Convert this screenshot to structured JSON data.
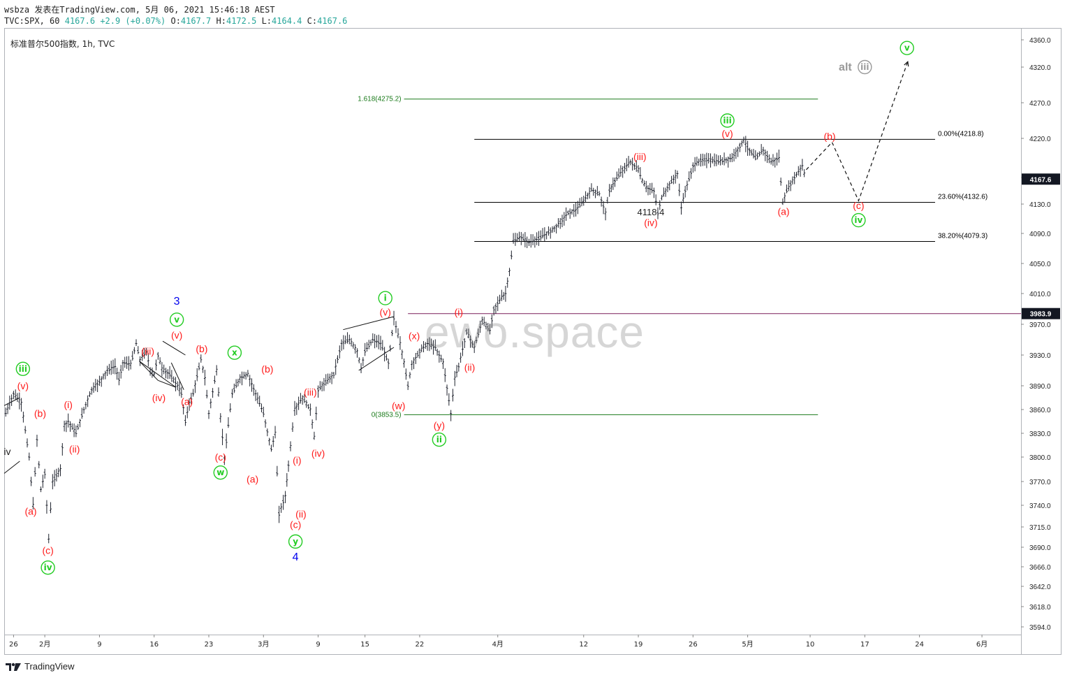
{
  "header": {
    "line1": "wsbza 发表在TradingView.com, 5月 06, 2021 15:46:18 AEST",
    "symbol": "TVC:SPX, 60",
    "last": "4167.6",
    "change": "+2.9 (+0.07%)",
    "o_label": "O:",
    "o": "4167.7",
    "h_label": "H:",
    "h": "4172.5",
    "l_label": "L:",
    "l": "4164.4",
    "c_label": "C:",
    "c": "4167.6"
  },
  "chart_title": "标准普尔500指数, 1h, TVC",
  "watermark": "ewo.space",
  "footer": {
    "brand": "TradingView"
  },
  "colors": {
    "red": "#ff1a1a",
    "green": "#22cc22",
    "blue": "#0000ee",
    "black": "#000000",
    "dark_green": "#1a7a1a",
    "purple": "#7b1f5a"
  },
  "chart_data": {
    "type": "line",
    "title": "标准普尔500指数, 1h, TVC",
    "ylim": [
      3580,
      4370
    ],
    "y_ticks": [
      "4360.0",
      "4320.0",
      "4270.0",
      "4220.0",
      "4170.0",
      "4130.0",
      "4090.0",
      "4050.0",
      "4010.0",
      "3970.0",
      "3930.0",
      "3890.0",
      "3860.0",
      "3830.0",
      "3800.0",
      "3770.0",
      "3740.0",
      "3715.0",
      "3690.0",
      "3666.0",
      "3642.0",
      "3618.0",
      "3594.0"
    ],
    "x_ticks": [
      {
        "label": "26",
        "t": 0
      },
      {
        "label": "2月",
        "t": 4
      },
      {
        "label": "9",
        "t": 11
      },
      {
        "label": "16",
        "t": 18
      },
      {
        "label": "23",
        "t": 25
      },
      {
        "label": "3月",
        "t": 32
      },
      {
        "label": "9",
        "t": 39
      },
      {
        "label": "15",
        "t": 45
      },
      {
        "label": "22",
        "t": 52
      },
      {
        "label": "4月",
        "t": 62
      },
      {
        "label": "12",
        "t": 73
      },
      {
        "label": "19",
        "t": 80
      },
      {
        "label": "26",
        "t": 87
      },
      {
        "label": "5月",
        "t": 94
      },
      {
        "label": "10",
        "t": 102
      },
      {
        "label": "17",
        "t": 109
      },
      {
        "label": "24",
        "t": 116
      },
      {
        "label": "6月",
        "t": 124
      }
    ],
    "t_range": [
      -1.2,
      129
    ],
    "price_series": [
      [
        -1,
        3855
      ],
      [
        0,
        3880
      ],
      [
        1,
        3868
      ],
      [
        2,
        3800
      ],
      [
        2.5,
        3740
      ],
      [
        3,
        3822
      ],
      [
        3.5,
        3760
      ],
      [
        4,
        3780
      ],
      [
        4.5,
        3700
      ],
      [
        5,
        3770
      ],
      [
        6,
        3785
      ],
      [
        6.5,
        3840
      ],
      [
        7,
        3845
      ],
      [
        8,
        3830
      ],
      [
        9,
        3860
      ],
      [
        10,
        3885
      ],
      [
        11,
        3895
      ],
      [
        12,
        3910
      ],
      [
        13,
        3915
      ],
      [
        13.5,
        3898
      ],
      [
        14,
        3920
      ],
      [
        15,
        3918
      ],
      [
        15.7,
        3945
      ],
      [
        16.2,
        3924
      ],
      [
        17,
        3935
      ],
      [
        17.5,
        3910
      ],
      [
        18,
        3905
      ],
      [
        18.5,
        3930
      ],
      [
        19,
        3912
      ],
      [
        20,
        3905
      ],
      [
        21,
        3890
      ],
      [
        21.5,
        3880
      ],
      [
        22,
        3845
      ],
      [
        22.5,
        3868
      ],
      [
        23,
        3880
      ],
      [
        24,
        3925
      ],
      [
        24.5,
        3900
      ],
      [
        25,
        3855
      ],
      [
        26,
        3910
      ],
      [
        26.5,
        3850
      ],
      [
        27,
        3800
      ],
      [
        28,
        3880
      ],
      [
        29,
        3900
      ],
      [
        30,
        3905
      ],
      [
        31,
        3880
      ],
      [
        32,
        3855
      ],
      [
        33,
        3810
      ],
      [
        33.5,
        3830
      ],
      [
        34,
        3730
      ],
      [
        34.8,
        3752
      ],
      [
        35.2,
        3790
      ],
      [
        36,
        3860
      ],
      [
        37,
        3875
      ],
      [
        38,
        3860
      ],
      [
        38.5,
        3825
      ],
      [
        39,
        3885
      ],
      [
        40,
        3895
      ],
      [
        41,
        3905
      ],
      [
        42,
        3945
      ],
      [
        43,
        3950
      ],
      [
        44,
        3935
      ],
      [
        44.5,
        3912
      ],
      [
        45,
        3935
      ],
      [
        46,
        3950
      ],
      [
        47,
        3945
      ],
      [
        48,
        3920
      ],
      [
        48.7,
        3978
      ],
      [
        49.5,
        3945
      ],
      [
        50,
        3920
      ],
      [
        50.5,
        3890
      ],
      [
        51,
        3918
      ],
      [
        52,
        3935
      ],
      [
        53,
        3945
      ],
      [
        54,
        3940
      ],
      [
        55,
        3920
      ],
      [
        56,
        3855
      ],
      [
        56.5,
        3900
      ],
      [
        57,
        3915
      ],
      [
        58,
        3960
      ],
      [
        59,
        3940
      ],
      [
        60,
        3975
      ],
      [
        61,
        3962
      ],
      [
        61.5,
        3990
      ],
      [
        62.5,
        4005
      ],
      [
        63,
        4010
      ],
      [
        63.5,
        4040
      ],
      [
        64,
        4080
      ],
      [
        65,
        4085
      ],
      [
        66,
        4078
      ],
      [
        67,
        4082
      ],
      [
        68,
        4088
      ],
      [
        69,
        4095
      ],
      [
        70,
        4105
      ],
      [
        71,
        4118
      ],
      [
        72,
        4122
      ],
      [
        73,
        4135
      ],
      [
        74,
        4152
      ],
      [
        75,
        4145
      ],
      [
        75.8,
        4118
      ],
      [
        76.3,
        4150
      ],
      [
        77,
        4165
      ],
      [
        78,
        4180
      ],
      [
        79,
        4190
      ],
      [
        80,
        4180
      ],
      [
        80.5,
        4165
      ],
      [
        81,
        4155
      ],
      [
        82,
        4150
      ],
      [
        82.5,
        4118
      ],
      [
        83,
        4140
      ],
      [
        84,
        4160
      ],
      [
        85,
        4175
      ],
      [
        85.5,
        4125
      ],
      [
        86,
        4150
      ],
      [
        87,
        4185
      ],
      [
        88,
        4192
      ],
      [
        89,
        4193
      ],
      [
        90,
        4190
      ],
      [
        91,
        4192
      ],
      [
        92,
        4195
      ],
      [
        93,
        4210
      ],
      [
        93.5,
        4218
      ],
      [
        94,
        4208
      ],
      [
        95,
        4195
      ],
      [
        96,
        4205
      ],
      [
        97,
        4190
      ],
      [
        98,
        4195
      ],
      [
        98.5,
        4132
      ],
      [
        99,
        4150
      ],
      [
        100,
        4170
      ],
      [
        101,
        4185
      ],
      [
        101.5,
        4165
      ]
    ],
    "horizontal_levels": [
      {
        "label": "1.618(4275.2)",
        "value": 4275.2,
        "t0": 50,
        "t1": 103,
        "color": "#1a7a1a",
        "label_side": "left"
      },
      {
        "label": "0.00%(4218.8)",
        "value": 4218.8,
        "t0": 59,
        "t1": 118,
        "color": "#000000",
        "label_side": "right"
      },
      {
        "label": "23.60%(4132.6)",
        "value": 4132.6,
        "t0": 59,
        "t1": 118,
        "color": "#000000",
        "label_side": "right"
      },
      {
        "label": "38.20%(4079.3)",
        "value": 4079.3,
        "t0": 59,
        "t1": 118,
        "color": "#000000",
        "label_side": "right"
      },
      {
        "label": "0(3853.5)",
        "value": 3853.5,
        "t0": 50,
        "t1": 103,
        "color": "#1a7a1a",
        "label_side": "left"
      },
      {
        "label": "",
        "value": 3983.9,
        "t0": 50.5,
        "t1": 130,
        "color": "#7b1f5a",
        "label_side": "none"
      }
    ],
    "price_tags": [
      {
        "value": 4167.6,
        "text": "4167.6"
      },
      {
        "value": 3983.9,
        "text": "3983.9"
      }
    ],
    "projection": [
      [
        101.5,
        4180
      ],
      [
        104.8,
        4215
      ],
      [
        108.2,
        4135
      ],
      [
        114.5,
        4328
      ]
    ],
    "channels": [
      [
        [
          -1.2,
          3865
        ],
        [
          0.8,
          3875
        ]
      ],
      [
        [
          -1.2,
          3780
        ],
        [
          0.8,
          3795
        ]
      ],
      [
        [
          16.1,
          3922
        ],
        [
          18.5,
          3897
        ]
      ],
      [
        [
          18.5,
          3897
        ],
        [
          20.8,
          3888
        ]
      ],
      [
        [
          16.1,
          3922
        ],
        [
          20.8,
          3888
        ]
      ],
      [
        [
          19.1,
          3948
        ],
        [
          22,
          3930
        ]
      ],
      [
        [
          20.2,
          3920
        ],
        [
          21.8,
          3885
        ]
      ],
      [
        [
          42.2,
          3963
        ],
        [
          48.7,
          3980
        ]
      ],
      [
        [
          44.2,
          3910
        ],
        [
          48.7,
          3940
        ]
      ]
    ],
    "text_annotations": [
      {
        "text": "4118.4",
        "t": 81.6,
        "v": 4115,
        "color": "#222222",
        "size": 13
      }
    ],
    "wave_labels": [
      {
        "text": "(v)",
        "t": 1.2,
        "v": 3890,
        "color": "#ff1a1a",
        "style": "plain"
      },
      {
        "text": "iii",
        "t": 1.2,
        "v": 3912,
        "color": "#22cc22",
        "style": "circle"
      },
      {
        "text": "iv",
        "t": -0.8,
        "v": 3807,
        "color": "#222222",
        "style": "plain"
      },
      {
        "text": "(a)",
        "t": 2.2,
        "v": 3733,
        "color": "#ff1a1a",
        "style": "plain"
      },
      {
        "text": "(b)",
        "t": 3.4,
        "v": 3855,
        "color": "#ff1a1a",
        "style": "plain"
      },
      {
        "text": "(c)",
        "t": 4.4,
        "v": 3686,
        "color": "#ff1a1a",
        "style": "plain"
      },
      {
        "text": "iv",
        "t": 4.4,
        "v": 3665,
        "color": "#22cc22",
        "style": "circle"
      },
      {
        "text": "(i)",
        "t": 7,
        "v": 3866,
        "color": "#ff1a1a",
        "style": "plain"
      },
      {
        "text": "(ii)",
        "t": 7.8,
        "v": 3810,
        "color": "#ff1a1a",
        "style": "plain"
      },
      {
        "text": "(iii)",
        "t": 17.2,
        "v": 3935,
        "color": "#ff1a1a",
        "style": "plain"
      },
      {
        "text": "(iv)",
        "t": 18.6,
        "v": 3875,
        "color": "#ff1a1a",
        "style": "plain"
      },
      {
        "text": "(v)",
        "t": 20.9,
        "v": 3956,
        "color": "#ff1a1a",
        "style": "plain"
      },
      {
        "text": "v",
        "t": 20.9,
        "v": 3976,
        "color": "#22cc22",
        "style": "circle"
      },
      {
        "text": "3",
        "t": 20.9,
        "v": 4000,
        "color": "#0000ee",
        "style": "plain"
      },
      {
        "text": "(b)",
        "t": 24.1,
        "v": 3938,
        "color": "#ff1a1a",
        "style": "plain"
      },
      {
        "text": "(a)",
        "t": 22.2,
        "v": 3870,
        "color": "#ff1a1a",
        "style": "plain"
      },
      {
        "text": "x",
        "t": 28.3,
        "v": 3933,
        "color": "#22cc22",
        "style": "circle"
      },
      {
        "text": "(c)",
        "t": 26.5,
        "v": 3800,
        "color": "#ff1a1a",
        "style": "plain"
      },
      {
        "text": "w",
        "t": 26.5,
        "v": 3781,
        "color": "#22cc22",
        "style": "circle"
      },
      {
        "text": "(b)",
        "t": 32.5,
        "v": 3912,
        "color": "#ff1a1a",
        "style": "plain"
      },
      {
        "text": "(a)",
        "t": 30.6,
        "v": 3773,
        "color": "#ff1a1a",
        "style": "plain"
      },
      {
        "text": "(iii)",
        "t": 38,
        "v": 3882,
        "color": "#ff1a1a",
        "style": "plain"
      },
      {
        "text": "(iv)",
        "t": 39,
        "v": 3805,
        "color": "#ff1a1a",
        "style": "plain"
      },
      {
        "text": "(i)",
        "t": 36.3,
        "v": 3796,
        "color": "#ff1a1a",
        "style": "plain"
      },
      {
        "text": "(ii)",
        "t": 36.8,
        "v": 3730,
        "color": "#ff1a1a",
        "style": "plain"
      },
      {
        "text": "(c)",
        "t": 36.1,
        "v": 3718,
        "color": "#ff1a1a",
        "style": "plain"
      },
      {
        "text": "y",
        "t": 36.1,
        "v": 3697,
        "color": "#22cc22",
        "style": "circle"
      },
      {
        "text": "4",
        "t": 36.1,
        "v": 3678,
        "color": "#0000ee",
        "style": "plain"
      },
      {
        "text": "i",
        "t": 47.6,
        "v": 4004,
        "color": "#22cc22",
        "style": "circle"
      },
      {
        "text": "(v)",
        "t": 47.6,
        "v": 3986,
        "color": "#ff1a1a",
        "style": "plain"
      },
      {
        "text": "(x)",
        "t": 51.3,
        "v": 3955,
        "color": "#ff1a1a",
        "style": "plain"
      },
      {
        "text": "(w)",
        "t": 49.3,
        "v": 3865,
        "color": "#ff1a1a",
        "style": "plain"
      },
      {
        "text": "(y)",
        "t": 54.5,
        "v": 3840,
        "color": "#ff1a1a",
        "style": "plain"
      },
      {
        "text": "ii",
        "t": 54.5,
        "v": 3822,
        "color": "#22cc22",
        "style": "circle"
      },
      {
        "text": "(i)",
        "t": 57,
        "v": 3986,
        "color": "#ff1a1a",
        "style": "plain"
      },
      {
        "text": "(ii)",
        "t": 58.4,
        "v": 3914,
        "color": "#ff1a1a",
        "style": "plain"
      },
      {
        "text": "(iii)",
        "t": 80.2,
        "v": 4197,
        "color": "#ff1a1a",
        "style": "plain"
      },
      {
        "text": "(iv)",
        "t": 81.6,
        "v": 4105,
        "color": "#ff1a1a",
        "style": "plain"
      },
      {
        "text": "iii",
        "t": 91.4,
        "v": 4245,
        "color": "#22cc22",
        "style": "circle"
      },
      {
        "text": "(v)",
        "t": 91.4,
        "v": 4227,
        "color": "#ff1a1a",
        "style": "plain"
      },
      {
        "text": "(a)",
        "t": 98.6,
        "v": 4120,
        "color": "#ff1a1a",
        "style": "plain"
      },
      {
        "text": "(b)",
        "t": 104.5,
        "v": 4223,
        "color": "#ff1a1a",
        "style": "plain"
      },
      {
        "text": "(c)",
        "t": 108.2,
        "v": 4128,
        "color": "#ff1a1a",
        "style": "plain"
      },
      {
        "text": "iv",
        "t": 108.2,
        "v": 4108,
        "color": "#22cc22",
        "style": "circle"
      },
      {
        "text": "v",
        "t": 114.4,
        "v": 4348,
        "color": "#22cc22",
        "style": "circle"
      },
      {
        "text": "alt",
        "t": 106.5,
        "v": 4320,
        "color": "#999999",
        "style": "alt"
      },
      {
        "text": "iii",
        "t": 109,
        "v": 4320,
        "color": "#999999",
        "style": "altcircle"
      }
    ]
  }
}
